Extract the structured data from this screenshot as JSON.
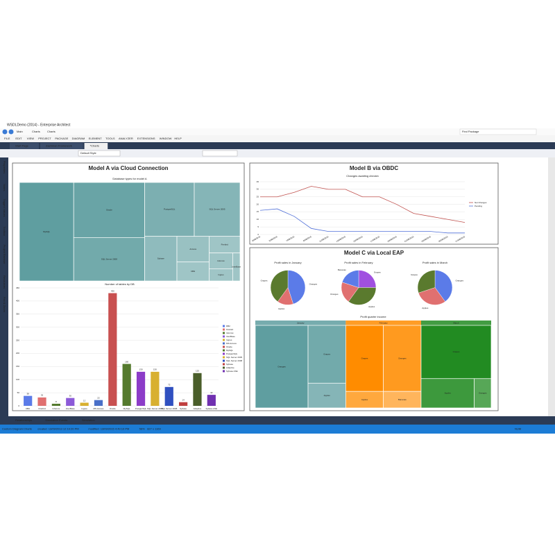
{
  "window": {
    "title": "WSDLDemo (2014) - Enterprise Architect",
    "address": [
      "Main",
      "Charts",
      "Charts"
    ],
    "search": "Find Package",
    "menu": [
      "FILE",
      "EDIT",
      "VIEW",
      "PROJECT",
      "PACKAGE",
      "DIAGRAM",
      "ELEMENT",
      "TOOLS",
      "ANALYZER",
      "EXTENSIONS",
      "WINDOW",
      "HELP"
    ],
    "tabs": [
      "Start Page",
      "Zachman Framework",
      "*Charts"
    ],
    "style": "Default Style",
    "sidebar": [
      "Properties",
      "Notes",
      "Tagged Values",
      "Toolbox",
      "Project Browser",
      "Resources",
      "Pan & Zoom"
    ],
    "bottom_tabs": [
      "Relationships",
      "Simulation Events",
      "Simulation"
    ],
    "status": [
      "Custom Diagram:Charts",
      "created: 13/09/2013 12:19:20 PM",
      "modified: 13/09/2015 4:49:10 PM",
      "56%",
      "827 x 1169"
    ],
    "num": "NUM"
  },
  "panels": [
    {
      "title": "Model A via Cloud Connection"
    },
    {
      "title": "Model B via OBDC"
    },
    {
      "title": "Model C via Local EAP"
    }
  ],
  "chart_data": [
    {
      "type": "treemap",
      "title": "Database types for model A",
      "color": "#5f9ea0",
      "categories": [
        "MySQL",
        "Oracle",
        "SQL Server 2008",
        "PostgreSQL",
        "SQL Server 2005",
        "Sybase",
        "Access",
        "DB2",
        "Firebird",
        "Informix",
        "Ingres",
        "InterBase"
      ],
      "values": [
        260,
        190,
        150,
        130,
        120,
        70,
        40,
        30,
        25,
        18,
        14,
        10
      ]
    },
    {
      "type": "bar",
      "title": "Number of tables by DB",
      "categories": [
        "DB2",
        "Firebird",
        "Informix",
        "InterBase",
        "Ingres",
        "MS Access",
        "Oracle",
        "MySQL",
        "PostgreSQL",
        "SQL Server 2005",
        "SQL Server 2008",
        "Sybase",
        "Adaptive",
        "Sybase ASE"
      ],
      "values": [
        38,
        32,
        8,
        30,
        12,
        22,
        430,
        160,
        130,
        130,
        72,
        14,
        125,
        42
      ],
      "colors": [
        "#5b7be8",
        "#e07070",
        "#557a2e",
        "#8c5ad8",
        "#d8b030",
        "#4a70c8",
        "#c85050",
        "#557a2e",
        "#8c3cc8",
        "#d8b030",
        "#3050c0",
        "#c04040",
        "#4a5e2a",
        "#7030b0"
      ],
      "ylim": [
        0,
        450
      ],
      "yticks": [
        0,
        50,
        100,
        150,
        200,
        250,
        300,
        350,
        400,
        450
      ],
      "grid": true
    },
    {
      "type": "line",
      "title": "Changes awaiting checkin",
      "categories": [
        "3/08/2015",
        "5/08/2015",
        "7/08/2015",
        "9/08/2015",
        "11/08/2015",
        "13/08/2015",
        "15/08/2015",
        "17/08/2015",
        "19/08/2015",
        "21/08/2015",
        "23/08/2015",
        "25/08/2015",
        "27/08/2015"
      ],
      "series": [
        {
          "name": "Net Changes",
          "color": "#c0504d",
          "values": [
            25,
            25,
            28,
            32,
            30,
            30,
            25,
            25,
            20,
            14,
            12,
            10,
            8
          ]
        },
        {
          "name": "Pending",
          "color": "#4f6fd8",
          "values": [
            16,
            17,
            12,
            4,
            2,
            2,
            2,
            2,
            2,
            2,
            2,
            1,
            1
          ]
        }
      ],
      "ylim": [
        0,
        35
      ],
      "yticks": [
        0,
        5,
        10,
        15,
        20,
        25,
        30,
        35
      ],
      "grid": true
    },
    {
      "type": "pie",
      "title": "Profit sales in January",
      "categories": [
        "Oranges",
        "Apples",
        "Grapes"
      ],
      "values": [
        45,
        15,
        40
      ],
      "colors": [
        "#5b7be8",
        "#e07070",
        "#5a7a2e"
      ]
    },
    {
      "type": "pie",
      "title": "Profit sales in February",
      "categories": [
        "Grapes",
        "Apples",
        "Oranges",
        "Bananas"
      ],
      "values": [
        25,
        35,
        20,
        20
      ],
      "colors": [
        "#a050e0",
        "#5a7a2e",
        "#e07070",
        "#5b7be8"
      ]
    },
    {
      "type": "pie",
      "title": "Profit sales in March",
      "categories": [
        "Oranges",
        "Apples",
        "Grapes"
      ],
      "values": [
        40,
        30,
        30
      ],
      "colors": [
        "#5b7be8",
        "#e07070",
        "#5a7a2e"
      ]
    },
    {
      "type": "treemap-groups",
      "title": "Profit quarter income",
      "series": [
        {
          "name": "January",
          "color": "#5f9ea0",
          "categories": [
            "Oranges",
            "Grapes",
            "Apples"
          ],
          "values": [
            70,
            35,
            15
          ]
        },
        {
          "name": "February",
          "color": "#ff8c00",
          "categories": [
            "Grapes",
            "Oranges",
            "Apples",
            "Bananas"
          ],
          "values": [
            40,
            40,
            10,
            10
          ]
        },
        {
          "name": "March",
          "color": "#228b22",
          "categories": [
            "Grapes",
            "Apples",
            "Oranges"
          ],
          "values": [
            60,
            25,
            8
          ]
        }
      ]
    }
  ]
}
